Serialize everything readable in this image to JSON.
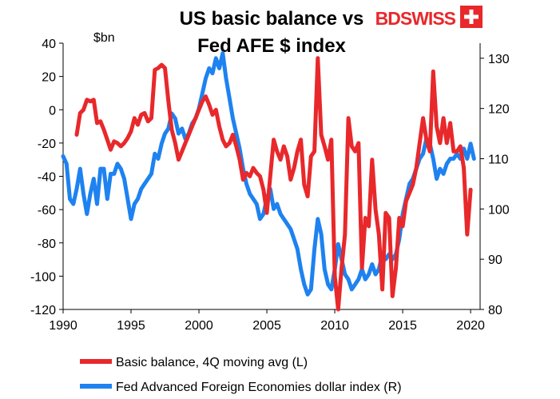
{
  "chart_data": {
    "type": "line",
    "title_lines": [
      "US basic balance vs",
      "Fed AFE $ index"
    ],
    "left_unit": "$bn",
    "x_ticks": [
      "1990",
      "1995",
      "2000",
      "2005",
      "2010",
      "2015",
      "2020"
    ],
    "xlim": [
      1990,
      2020.7
    ],
    "y_left": {
      "lim": [
        -120,
        40
      ],
      "ticks": [
        "40",
        "20",
        "0",
        "-20",
        "-40",
        "-60",
        "-80",
        "-100",
        "-120"
      ]
    },
    "y_right": {
      "lim": [
        80,
        133
      ],
      "ticks": [
        "130",
        "120",
        "110",
        "100",
        "90",
        "80"
      ]
    },
    "series": [
      {
        "name": "Basic balance, 4Q moving avg (L)",
        "axis": "left",
        "color": "#e8282b",
        "points": [
          [
            1991.0,
            -15
          ],
          [
            1991.25,
            -2
          ],
          [
            1991.5,
            0
          ],
          [
            1991.75,
            6
          ],
          [
            1992.0,
            5
          ],
          [
            1992.25,
            6
          ],
          [
            1992.5,
            -8
          ],
          [
            1992.75,
            -7
          ],
          [
            1993.0,
            -12
          ],
          [
            1993.25,
            -18
          ],
          [
            1993.5,
            -24
          ],
          [
            1993.75,
            -19
          ],
          [
            1994.0,
            -20
          ],
          [
            1994.25,
            -22
          ],
          [
            1994.5,
            -20
          ],
          [
            1994.75,
            -17
          ],
          [
            1995.0,
            -13
          ],
          [
            1995.25,
            -5
          ],
          [
            1995.5,
            -9
          ],
          [
            1995.75,
            -3
          ],
          [
            1996.0,
            -2
          ],
          [
            1996.25,
            -7
          ],
          [
            1996.5,
            -5
          ],
          [
            1996.75,
            24
          ],
          [
            1997.0,
            25
          ],
          [
            1997.25,
            27
          ],
          [
            1997.5,
            25
          ],
          [
            1997.75,
            5
          ],
          [
            1998.0,
            -12
          ],
          [
            1998.25,
            -20
          ],
          [
            1998.5,
            -30
          ],
          [
            1998.75,
            -25
          ],
          [
            1999.0,
            -20
          ],
          [
            1999.25,
            -15
          ],
          [
            1999.5,
            -10
          ],
          [
            1999.75,
            -5
          ],
          [
            2000.0,
            0
          ],
          [
            2000.25,
            5
          ],
          [
            2000.5,
            8
          ],
          [
            2000.75,
            3
          ],
          [
            2001.0,
            -3
          ],
          [
            2001.25,
            0
          ],
          [
            2001.5,
            -10
          ],
          [
            2001.75,
            -18
          ],
          [
            2002.0,
            -22
          ],
          [
            2002.25,
            -20
          ],
          [
            2002.5,
            -15
          ],
          [
            2002.75,
            -22
          ],
          [
            2003.0,
            -30
          ],
          [
            2003.25,
            -42
          ],
          [
            2003.5,
            -38
          ],
          [
            2003.75,
            -40
          ],
          [
            2004.0,
            -35
          ],
          [
            2004.25,
            -38
          ],
          [
            2004.5,
            -40
          ],
          [
            2004.75,
            -48
          ],
          [
            2005.0,
            -62
          ],
          [
            2005.25,
            -40
          ],
          [
            2005.5,
            -18
          ],
          [
            2005.75,
            -25
          ],
          [
            2006.0,
            -30
          ],
          [
            2006.25,
            -22
          ],
          [
            2006.5,
            -28
          ],
          [
            2006.75,
            -42
          ],
          [
            2007.0,
            -35
          ],
          [
            2007.25,
            -25
          ],
          [
            2007.5,
            -18
          ],
          [
            2007.75,
            -45
          ],
          [
            2008.0,
            -52
          ],
          [
            2008.25,
            -28
          ],
          [
            2008.5,
            -25
          ],
          [
            2008.75,
            31
          ],
          [
            2009.0,
            -15
          ],
          [
            2009.25,
            -22
          ],
          [
            2009.5,
            -30
          ],
          [
            2009.75,
            -18
          ],
          [
            2010.0,
            -100
          ],
          [
            2010.25,
            -120
          ],
          [
            2010.5,
            -95
          ],
          [
            2010.75,
            -75
          ],
          [
            2011.0,
            -5
          ],
          [
            2011.25,
            -22
          ],
          [
            2011.5,
            -25
          ],
          [
            2011.75,
            -20
          ],
          [
            2012.0,
            -95
          ],
          [
            2012.25,
            -65
          ],
          [
            2012.5,
            -70
          ],
          [
            2012.75,
            -30
          ],
          [
            2013.0,
            -60
          ],
          [
            2013.25,
            -75
          ],
          [
            2013.5,
            -108
          ],
          [
            2013.75,
            -62
          ],
          [
            2014.0,
            -65
          ],
          [
            2014.25,
            -112
          ],
          [
            2014.5,
            -95
          ],
          [
            2014.75,
            -65
          ],
          [
            2015.0,
            -70
          ],
          [
            2015.25,
            -55
          ],
          [
            2015.5,
            -50
          ],
          [
            2015.75,
            -45
          ],
          [
            2016.0,
            -35
          ],
          [
            2016.25,
            -20
          ],
          [
            2016.5,
            -5
          ],
          [
            2016.75,
            -18
          ],
          [
            2017.0,
            -25
          ],
          [
            2017.25,
            23
          ],
          [
            2017.5,
            -10
          ],
          [
            2017.75,
            -20
          ],
          [
            2018.0,
            -5
          ],
          [
            2018.25,
            -20
          ],
          [
            2018.5,
            -8
          ],
          [
            2018.75,
            -25
          ],
          [
            2019.0,
            -25
          ],
          [
            2019.25,
            -22
          ],
          [
            2019.5,
            -35
          ],
          [
            2019.75,
            -75
          ],
          [
            2020.0,
            -48
          ]
        ]
      },
      {
        "name": "Fed Advanced Foreign Economies dollar index (R)",
        "axis": "right",
        "color": "#1e82f0",
        "points": [
          [
            1990.0,
            110.5
          ],
          [
            1990.25,
            109
          ],
          [
            1990.5,
            102
          ],
          [
            1990.75,
            101
          ],
          [
            1991.0,
            104
          ],
          [
            1991.25,
            108
          ],
          [
            1991.5,
            103
          ],
          [
            1991.75,
            99
          ],
          [
            1992.0,
            103
          ],
          [
            1992.25,
            106
          ],
          [
            1992.5,
            101
          ],
          [
            1992.75,
            108
          ],
          [
            1993.0,
            108
          ],
          [
            1993.25,
            102
          ],
          [
            1993.5,
            107
          ],
          [
            1993.75,
            107
          ],
          [
            1994.0,
            109
          ],
          [
            1994.25,
            108
          ],
          [
            1994.5,
            106
          ],
          [
            1994.75,
            102
          ],
          [
            1995.0,
            98
          ],
          [
            1995.25,
            101
          ],
          [
            1995.5,
            102
          ],
          [
            1995.75,
            104
          ],
          [
            1996.0,
            105
          ],
          [
            1996.25,
            106
          ],
          [
            1996.5,
            107
          ],
          [
            1996.75,
            111
          ],
          [
            1997.0,
            110
          ],
          [
            1997.25,
            113
          ],
          [
            1997.5,
            115
          ],
          [
            1997.75,
            116
          ],
          [
            1998.0,
            119
          ],
          [
            1998.25,
            118
          ],
          [
            1998.5,
            115
          ],
          [
            1998.75,
            116
          ],
          [
            1999.0,
            114
          ],
          [
            1999.25,
            115
          ],
          [
            1999.5,
            117
          ],
          [
            1999.75,
            118
          ],
          [
            2000.0,
            120
          ],
          [
            2000.25,
            123
          ],
          [
            2000.5,
            126
          ],
          [
            2000.75,
            128
          ],
          [
            2001.0,
            127
          ],
          [
            2001.25,
            130
          ],
          [
            2001.5,
            128
          ],
          [
            2001.75,
            131
          ],
          [
            2002.0,
            126
          ],
          [
            2002.25,
            122
          ],
          [
            2002.5,
            118
          ],
          [
            2002.75,
            115
          ],
          [
            2003.0,
            112
          ],
          [
            2003.25,
            108
          ],
          [
            2003.5,
            105
          ],
          [
            2003.75,
            103
          ],
          [
            2004.0,
            102
          ],
          [
            2004.25,
            101
          ],
          [
            2004.5,
            98
          ],
          [
            2004.75,
            99
          ],
          [
            2005.0,
            102
          ],
          [
            2005.25,
            104
          ],
          [
            2005.5,
            100
          ],
          [
            2005.75,
            101
          ],
          [
            2006.0,
            99
          ],
          [
            2006.25,
            98
          ],
          [
            2006.5,
            97
          ],
          [
            2006.75,
            96
          ],
          [
            2007.0,
            94
          ],
          [
            2007.25,
            92
          ],
          [
            2007.5,
            88
          ],
          [
            2007.75,
            85
          ],
          [
            2008.0,
            83
          ],
          [
            2008.25,
            84
          ],
          [
            2008.5,
            92
          ],
          [
            2008.75,
            98
          ],
          [
            2009.0,
            95
          ],
          [
            2009.25,
            88
          ],
          [
            2009.5,
            85
          ],
          [
            2009.75,
            84
          ],
          [
            2010.0,
            88
          ],
          [
            2010.25,
            93
          ],
          [
            2010.5,
            90
          ],
          [
            2010.75,
            87
          ],
          [
            2011.0,
            86
          ],
          [
            2011.25,
            84
          ],
          [
            2011.5,
            85
          ],
          [
            2011.75,
            86
          ],
          [
            2012.0,
            88
          ],
          [
            2012.25,
            86
          ],
          [
            2012.5,
            87
          ],
          [
            2012.75,
            89
          ],
          [
            2013.0,
            87
          ],
          [
            2013.25,
            88
          ],
          [
            2013.5,
            91
          ],
          [
            2013.75,
            90
          ],
          [
            2014.0,
            91
          ],
          [
            2014.25,
            90
          ],
          [
            2014.5,
            91
          ],
          [
            2014.75,
            94
          ],
          [
            2015.0,
            99
          ],
          [
            2015.25,
            102
          ],
          [
            2015.5,
            105
          ],
          [
            2015.75,
            106
          ],
          [
            2016.0,
            108
          ],
          [
            2016.25,
            110
          ],
          [
            2016.5,
            111
          ],
          [
            2016.75,
            114
          ],
          [
            2017.0,
            113
          ],
          [
            2017.25,
            110
          ],
          [
            2017.5,
            106
          ],
          [
            2017.75,
            108
          ],
          [
            2018.0,
            107
          ],
          [
            2018.25,
            109
          ],
          [
            2018.5,
            110
          ],
          [
            2018.75,
            110
          ],
          [
            2019.0,
            111
          ],
          [
            2019.25,
            110
          ],
          [
            2019.5,
            112
          ],
          [
            2019.75,
            110
          ],
          [
            2020.0,
            113
          ],
          [
            2020.25,
            110
          ]
        ]
      }
    ],
    "legend_position": "bottom"
  },
  "logo": {
    "text": "BDSWISS",
    "accent": "#e8282b"
  }
}
